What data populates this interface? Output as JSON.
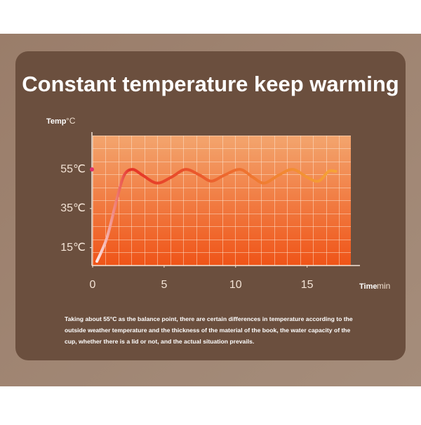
{
  "chart_data": {
    "type": "line",
    "title": "Constant temperature keep warming",
    "y_label": "Temp",
    "y_unit": "°C",
    "x_label": "Time",
    "x_unit": "min",
    "note": "Taking about 55°C as the balance point, there are certain differences in temperature according to the outside weather temperature and the thickness of the material of the book, the water capacity of the cup, whether there is a lid or not, and the actual situation prevails.",
    "x": [
      0.3,
      1,
      1.7,
      2.2,
      2.8,
      3.5,
      4.5,
      5.5,
      6.5,
      7.5,
      8.3,
      9.2,
      10.3,
      11.2,
      12,
      13,
      14,
      15,
      15.8,
      16.5,
      17
    ],
    "values": [
      8,
      20,
      40,
      52,
      55,
      52,
      48,
      51,
      55,
      52,
      49,
      52,
      55,
      51,
      48,
      52,
      55,
      51,
      49,
      54,
      54
    ],
    "xlim": [
      0,
      18.5
    ],
    "ylim": [
      3,
      73
    ],
    "xticks": [
      0,
      5,
      10,
      15
    ],
    "yticks": [
      {
        "value": 55,
        "label": "55℃"
      },
      {
        "value": 35,
        "label": "35℃"
      },
      {
        "value": 15,
        "label": "15℃"
      }
    ],
    "grid": true
  }
}
